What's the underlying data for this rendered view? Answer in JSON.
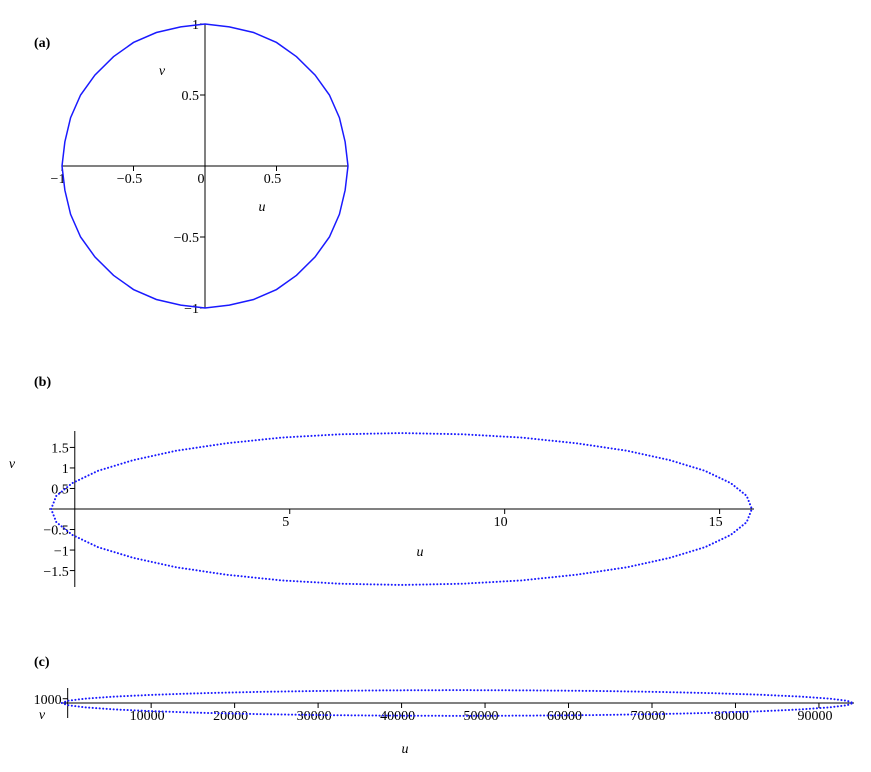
{
  "chart_data": [
    {
      "type": "line",
      "panel_label": "(a)",
      "xlabel": "u",
      "ylabel": "v",
      "line_style": "solid",
      "xlim": [
        -1,
        1
      ],
      "ylim": [
        -1,
        1
      ],
      "xticks": [
        {
          "value": -1,
          "label": "−1"
        },
        {
          "value": -0.5,
          "label": "−0.5"
        },
        0,
        0.5
      ],
      "yticks": [
        1,
        0.5,
        {
          "value": -0.5,
          "label": "−0.5"
        },
        {
          "value": -1,
          "label": "−1"
        }
      ],
      "series": [
        {
          "color": "#1a1aff",
          "x": [
            1,
            0.98,
            0.94,
            0.87,
            0.77,
            0.64,
            0.5,
            0.34,
            0.17,
            0,
            -0.17,
            -0.34,
            -0.5,
            -0.64,
            -0.77,
            -0.87,
            -0.94,
            -0.98,
            -1,
            -0.98,
            -0.94,
            -0.87,
            -0.77,
            -0.64,
            -0.5,
            -0.34,
            -0.17,
            0,
            0.17,
            0.34,
            0.5,
            0.64,
            0.77,
            0.87,
            0.94,
            0.98
          ],
          "values": [
            0,
            0.17,
            0.34,
            0.5,
            0.64,
            0.77,
            0.87,
            0.94,
            0.98,
            1,
            0.98,
            0.94,
            0.87,
            0.77,
            0.64,
            0.5,
            0.34,
            0.17,
            0,
            -0.17,
            -0.34,
            -0.5,
            -0.64,
            -0.77,
            -0.87,
            -0.94,
            -0.98,
            -1,
            -0.98,
            -0.94,
            -0.87,
            -0.77,
            -0.64,
            -0.5,
            -0.34,
            -0.17
          ]
        }
      ]
    },
    {
      "type": "line",
      "panel_label": "(b)",
      "xlabel": "u",
      "ylabel": "v",
      "line_style": "dotted",
      "xlim": [
        -0.6,
        15.8
      ],
      "ylim": [
        -1.9,
        1.9
      ],
      "xticks": [
        5,
        10,
        15
      ],
      "yticks": [
        1.5,
        1,
        0.5,
        {
          "value": -0.5,
          "label": "−0.5"
        },
        {
          "value": -1,
          "label": "−1"
        },
        {
          "value": -1.5,
          "label": "−1.5"
        }
      ],
      "series": [
        {
          "color": "#1a1aff",
          "x": [
            -0.55,
            -0.43,
            -0.06,
            0.54,
            1.36,
            2.36,
            3.52,
            4.81,
            6.18,
            7.6,
            9.02,
            10.39,
            11.68,
            12.84,
            13.84,
            14.66,
            15.26,
            15.63,
            15.75,
            15.63,
            15.26,
            14.66,
            13.84,
            12.84,
            11.68,
            10.39,
            9.02,
            7.6,
            6.18,
            4.81,
            3.52,
            2.36,
            1.36,
            0.54,
            -0.06,
            -0.43
          ],
          "values": [
            0,
            0.32,
            0.63,
            0.93,
            1.19,
            1.42,
            1.6,
            1.74,
            1.82,
            1.85,
            1.82,
            1.74,
            1.6,
            1.42,
            1.19,
            0.93,
            0.63,
            0.32,
            0,
            -0.32,
            -0.63,
            -0.93,
            -1.19,
            -1.42,
            -1.6,
            -1.74,
            -1.82,
            -1.85,
            -1.82,
            -1.74,
            -1.6,
            -1.42,
            -1.19,
            -0.93,
            -0.63,
            -0.32
          ]
        }
      ]
    },
    {
      "type": "line",
      "panel_label": "(c)",
      "xlabel": "u",
      "ylabel": "v",
      "line_style": "dotted",
      "xlim": [
        -800,
        94200
      ],
      "ylim": [
        -3500,
        3500
      ],
      "xticks": [
        10000,
        20000,
        30000,
        40000,
        50000,
        60000,
        70000,
        80000,
        90000
      ],
      "yticks": [
        1000
      ],
      "series": [
        {
          "color": "#1a1aff",
          "x": [
            -700,
            20,
            2160,
            5650,
            10390,
            16230,
            23000,
            30490,
            38470,
            46700,
            54930,
            62910,
            70400,
            77170,
            83010,
            87750,
            91240,
            93380,
            94100,
            93380,
            91240,
            87750,
            83010,
            77170,
            70400,
            62910,
            54930,
            46700,
            38470,
            30490,
            23000,
            16230,
            10390,
            5650,
            2160,
            20
          ],
          "values": [
            0,
            520,
            1030,
            1500,
            1930,
            2300,
            2600,
            2820,
            2950,
            3000,
            2950,
            2820,
            2600,
            2300,
            1930,
            1500,
            1030,
            520,
            0,
            -520,
            -1030,
            -1500,
            -1930,
            -2300,
            -2600,
            -2820,
            -2950,
            -3000,
            -2950,
            -2820,
            -2600,
            -2300,
            -1930,
            -1500,
            -1030,
            -520
          ]
        }
      ]
    }
  ]
}
